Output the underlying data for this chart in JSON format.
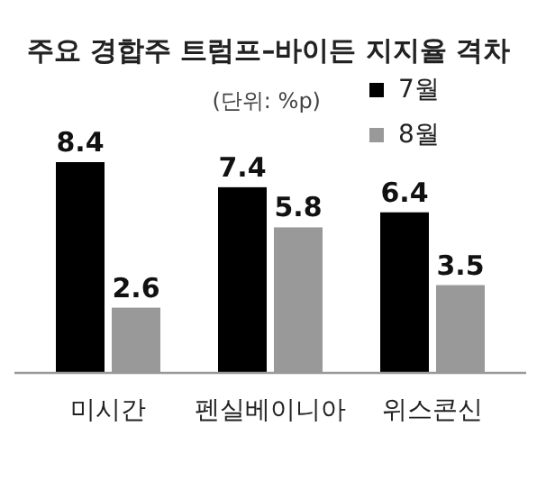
{
  "chart_data": {
    "type": "bar",
    "title": "주요 경합주 트럼프–바이든 지지율 격차",
    "annotations": [
      "(단위: %p)"
    ],
    "categories": [
      "미시간",
      "펜실베이니아",
      "위스콘신"
    ],
    "series": [
      {
        "name": "7월",
        "color": "#000000",
        "values": [
          8.4,
          7.4,
          6.4
        ]
      },
      {
        "name": "8월",
        "color": "#999999",
        "values": [
          2.6,
          5.8,
          3.5
        ]
      }
    ],
    "data_labels": true,
    "legend": "top right"
  }
}
